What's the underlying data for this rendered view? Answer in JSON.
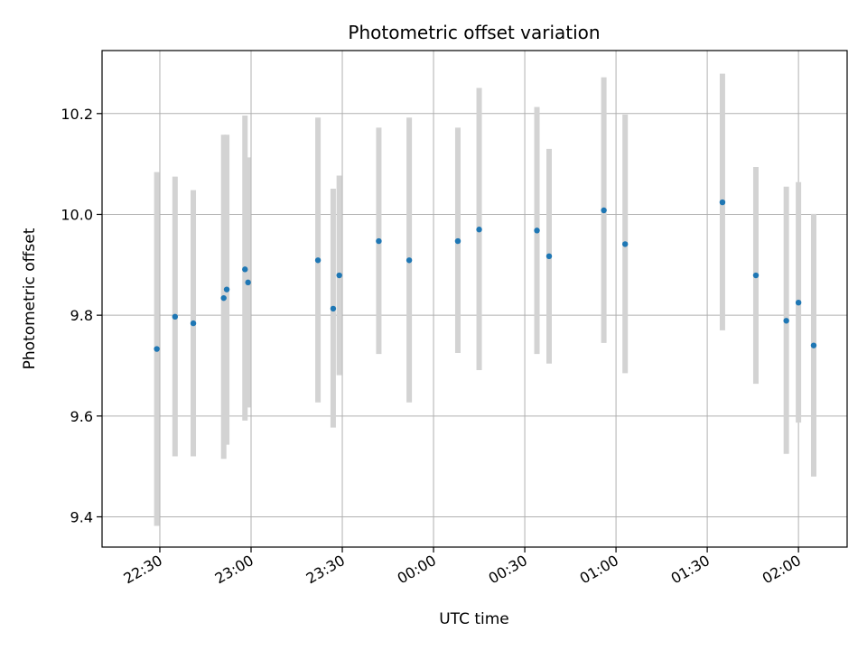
{
  "chart_data": {
    "type": "scatter",
    "title": "Photometric offset variation",
    "xlabel": "UTC time",
    "ylabel": "Photometric offset",
    "xlim": [
      "22:11",
      "02:16"
    ],
    "ylim": [
      9.34,
      10.325
    ],
    "xticks": [
      "22:30",
      "23:00",
      "23:30",
      "00:00",
      "00:30",
      "01:00",
      "01:30",
      "02:00"
    ],
    "yticks": [
      9.4,
      9.6,
      9.8,
      10.0,
      10.2
    ],
    "grid": true,
    "colors": {
      "point": "#1f77b4",
      "errorbar": "#d3d3d3",
      "grid": "#b0b0b0"
    },
    "points": [
      {
        "x": "22:29",
        "y": 9.733,
        "ylow": 9.382,
        "yhigh": 10.084
      },
      {
        "x": "22:35",
        "y": 9.797,
        "ylow": 9.52,
        "yhigh": 10.075
      },
      {
        "x": "22:41",
        "y": 9.784,
        "ylow": 9.52,
        "yhigh": 10.048
      },
      {
        "x": "22:51",
        "y": 9.834,
        "ylow": 9.515,
        "yhigh": 10.158
      },
      {
        "x": "22:52",
        "y": 9.851,
        "ylow": 9.543,
        "yhigh": 10.158
      },
      {
        "x": "22:58",
        "y": 9.891,
        "ylow": 9.591,
        "yhigh": 10.196
      },
      {
        "x": "22:59",
        "y": 9.865,
        "ylow": 9.617,
        "yhigh": 10.113
      },
      {
        "x": "23:22",
        "y": 9.909,
        "ylow": 9.627,
        "yhigh": 10.192
      },
      {
        "x": "23:27",
        "y": 9.813,
        "ylow": 9.577,
        "yhigh": 10.051
      },
      {
        "x": "23:29",
        "y": 9.879,
        "ylow": 9.681,
        "yhigh": 10.077
      },
      {
        "x": "23:42",
        "y": 9.947,
        "ylow": 9.723,
        "yhigh": 10.172
      },
      {
        "x": "23:52",
        "y": 9.909,
        "ylow": 9.627,
        "yhigh": 10.192
      },
      {
        "x": "00:08",
        "y": 9.947,
        "ylow": 9.725,
        "yhigh": 10.172
      },
      {
        "x": "00:15",
        "y": 9.97,
        "ylow": 9.691,
        "yhigh": 10.251
      },
      {
        "x": "00:34",
        "y": 9.968,
        "ylow": 9.723,
        "yhigh": 10.213
      },
      {
        "x": "00:38",
        "y": 9.917,
        "ylow": 9.704,
        "yhigh": 10.13
      },
      {
        "x": "00:56",
        "y": 10.008,
        "ylow": 9.745,
        "yhigh": 10.272
      },
      {
        "x": "01:03",
        "y": 9.941,
        "ylow": 9.685,
        "yhigh": 10.198
      },
      {
        "x": "01:35",
        "y": 10.024,
        "ylow": 9.77,
        "yhigh": 10.279
      },
      {
        "x": "01:46",
        "y": 9.879,
        "ylow": 9.664,
        "yhigh": 10.094
      },
      {
        "x": "01:56",
        "y": 9.789,
        "ylow": 9.525,
        "yhigh": 10.055
      },
      {
        "x": "02:00",
        "y": 9.825,
        "ylow": 9.587,
        "yhigh": 10.064
      },
      {
        "x": "02:05",
        "y": 9.74,
        "ylow": 9.48,
        "yhigh": 10.001
      }
    ]
  }
}
